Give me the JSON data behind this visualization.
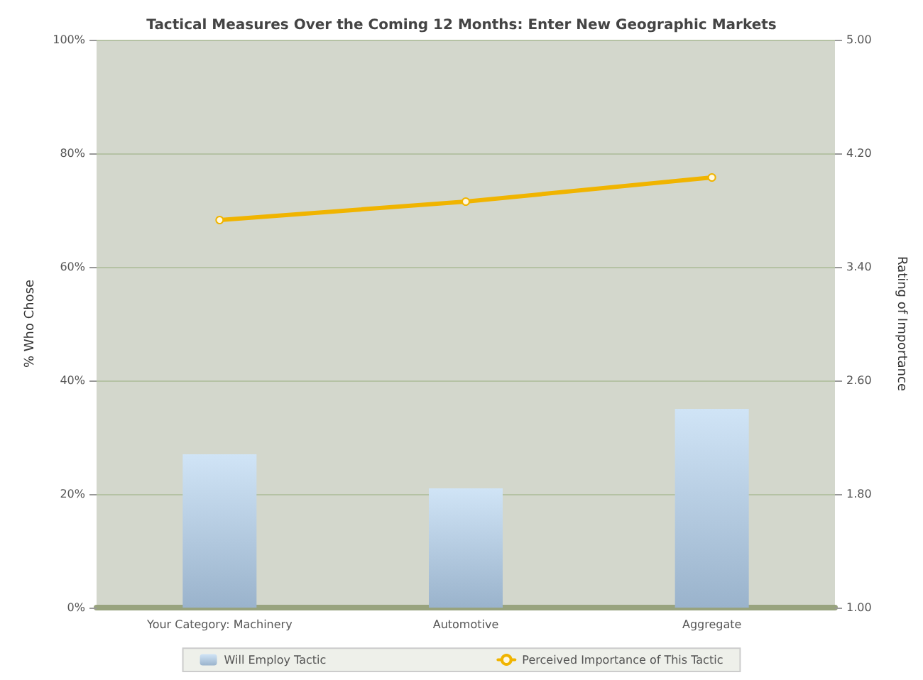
{
  "chart_data": {
    "type": "bar",
    "title": "Tactical Measures Over the Coming 12 Months: Enter New Geographic Markets",
    "ylabel": "% Who Chose",
    "y2label": "Rating of Importance",
    "categories": [
      "Your Category: Machinery",
      "Automotive",
      "Aggregate"
    ],
    "series": [
      {
        "name": "Will Employ Tactic",
        "color": "#9ab3cc",
        "values": [
          27,
          21,
          35
        ]
      },
      {
        "name": "Perceived Importance of This Tactic",
        "type": "line",
        "axis": "y2",
        "color": "#f0b400",
        "values": [
          3.73,
          3.86,
          4.03
        ]
      }
    ],
    "ylim": [
      0,
      100
    ],
    "yticks": [
      {
        "value": 0,
        "label": "0%"
      },
      {
        "value": 20,
        "label": "20%"
      },
      {
        "value": 40,
        "label": "40%"
      },
      {
        "value": 60,
        "label": "60%"
      },
      {
        "value": 80,
        "label": "80%"
      },
      {
        "value": 100,
        "label": "100%"
      }
    ],
    "y2lim": [
      1,
      5
    ],
    "y2ticks": [
      {
        "value": 1,
        "label": "1.00"
      },
      {
        "value": 1.8,
        "label": "1.80"
      },
      {
        "value": 2.6,
        "label": "2.60"
      },
      {
        "value": 3.4,
        "label": "3.40"
      },
      {
        "value": 4.2,
        "label": "4.20"
      },
      {
        "value": 5,
        "label": "5.00"
      }
    ],
    "grid": "y",
    "legend": "bottom",
    "marker": "circle"
  }
}
